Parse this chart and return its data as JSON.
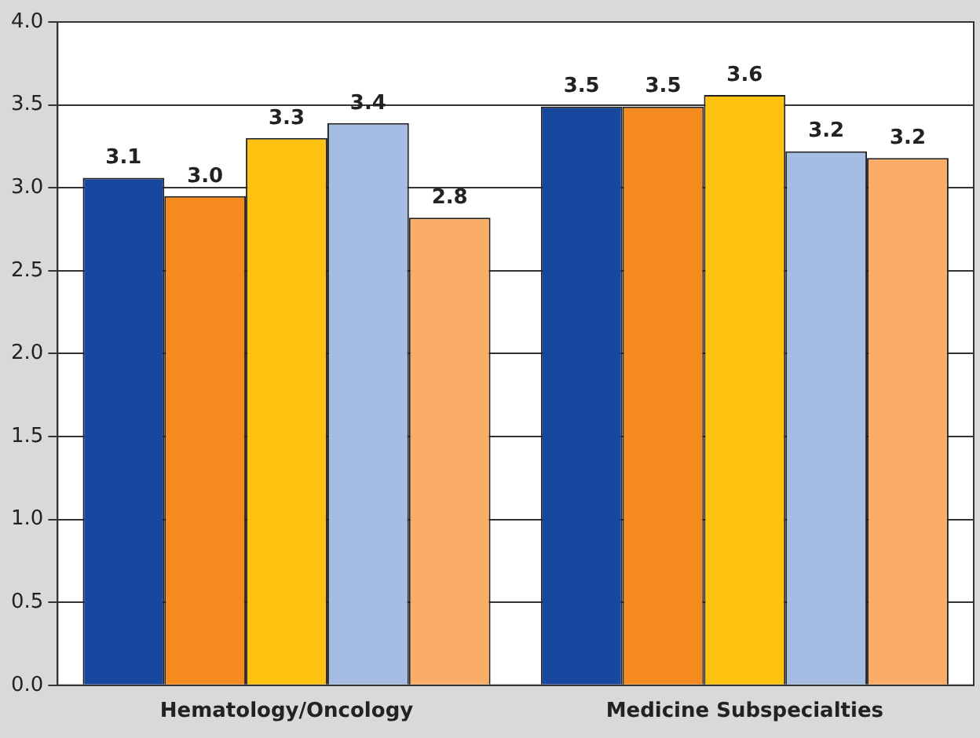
{
  "chart_data": {
    "type": "bar",
    "categories": [
      "Hematology/Oncology",
      "Medicine Subspecialties"
    ],
    "series": [
      {
        "color": "#17479e",
        "values": [
          3.06,
          3.49
        ],
        "value_labels": [
          "3.1",
          "3.5"
        ]
      },
      {
        "color": "#f58b1f",
        "values": [
          2.95,
          3.49
        ],
        "value_labels": [
          "3.0",
          "3.5"
        ]
      },
      {
        "color": "#fdc210",
        "values": [
          3.3,
          3.56
        ],
        "value_labels": [
          "3.3",
          "3.6"
        ]
      },
      {
        "color": "#a6bde3",
        "values": [
          3.39,
          3.22
        ],
        "value_labels": [
          "3.4",
          "3.2"
        ]
      },
      {
        "color": "#f9ad66",
        "values": [
          2.82,
          3.18
        ],
        "value_labels": [
          "2.8",
          "3.2"
        ]
      }
    ],
    "ylim": [
      0,
      4
    ],
    "yticks": [
      "0.0",
      "0.5",
      "1.0",
      "1.5",
      "2.0",
      "2.5",
      "3.0",
      "3.5",
      "4.0"
    ],
    "grid": "y",
    "legend": false
  }
}
